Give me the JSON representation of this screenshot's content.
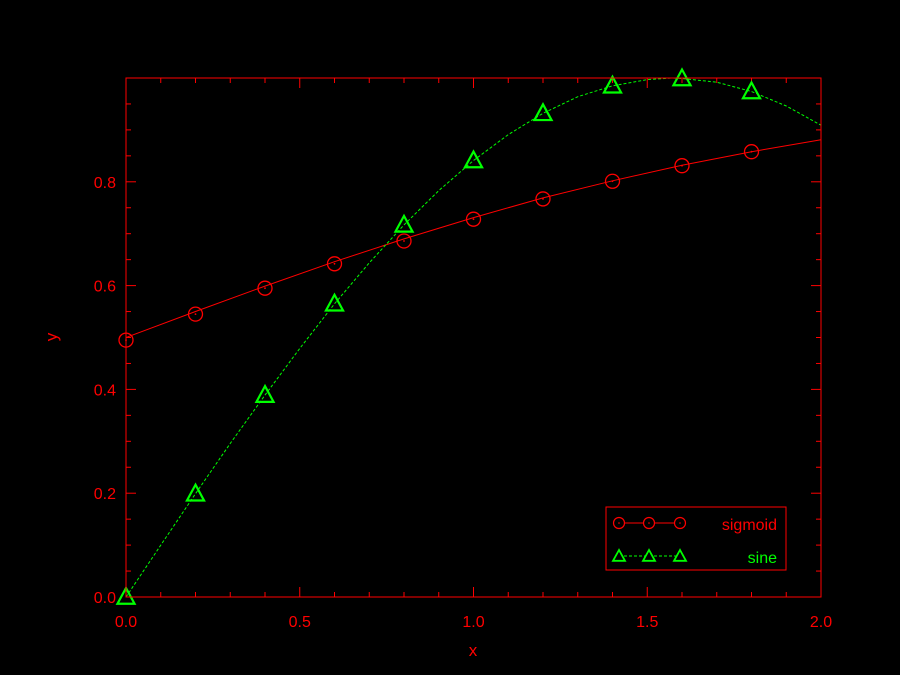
{
  "chart_data": {
    "type": "line",
    "title": "",
    "xlabel": "x",
    "ylabel": "y",
    "xlim": [
      0,
      2
    ],
    "ylim": [
      0,
      1
    ],
    "x_ticks": [
      "0.0",
      "0.5",
      "1.0",
      "1.5",
      "2.0"
    ],
    "y_ticks": [
      "0.0",
      "0.2",
      "0.4",
      "0.6",
      "0.8"
    ],
    "grid": false,
    "legend_position": "bottom-right",
    "colors": {
      "axis": "#ff0000",
      "sigmoid": "#ff0000",
      "sine": "#00ff00",
      "background": "#000000"
    },
    "series": [
      {
        "name": "sigmoid",
        "line_style": "solid",
        "marker": "circle",
        "marker_x": [
          0.0,
          0.2,
          0.4,
          0.6,
          0.8,
          1.0,
          1.2,
          1.4,
          1.6,
          1.8
        ],
        "marker_y": [
          0.495,
          0.545,
          0.595,
          0.642,
          0.686,
          0.728,
          0.767,
          0.801,
          0.831,
          0.858
        ],
        "curve_x": [
          0.0,
          0.2,
          0.4,
          0.6,
          0.8,
          1.0,
          1.2,
          1.4,
          1.6,
          1.8,
          2.0
        ],
        "curve_y": [
          0.5,
          0.55,
          0.599,
          0.646,
          0.69,
          0.731,
          0.769,
          0.802,
          0.832,
          0.858,
          0.881
        ]
      },
      {
        "name": "sine",
        "line_style": "dashed",
        "marker": "triangle",
        "marker_x": [
          0.0,
          0.2,
          0.4,
          0.6,
          0.8,
          1.0,
          1.2,
          1.4,
          1.6,
          1.8
        ],
        "marker_y": [
          0.0,
          0.199,
          0.389,
          0.565,
          0.717,
          0.841,
          0.932,
          0.985,
          0.999,
          0.974
        ],
        "curve_x": [
          0.0,
          0.1,
          0.2,
          0.3,
          0.4,
          0.5,
          0.6,
          0.7,
          0.8,
          0.9,
          1.0,
          1.1,
          1.2,
          1.3,
          1.4,
          1.5,
          1.571,
          1.6,
          1.7,
          1.8,
          1.9,
          2.0
        ],
        "curve_y": [
          0.0,
          0.1,
          0.199,
          0.296,
          0.389,
          0.479,
          0.565,
          0.644,
          0.717,
          0.783,
          0.841,
          0.891,
          0.932,
          0.964,
          0.985,
          0.997,
          1.0,
          0.999,
          0.992,
          0.974,
          0.946,
          0.909
        ]
      }
    ]
  }
}
